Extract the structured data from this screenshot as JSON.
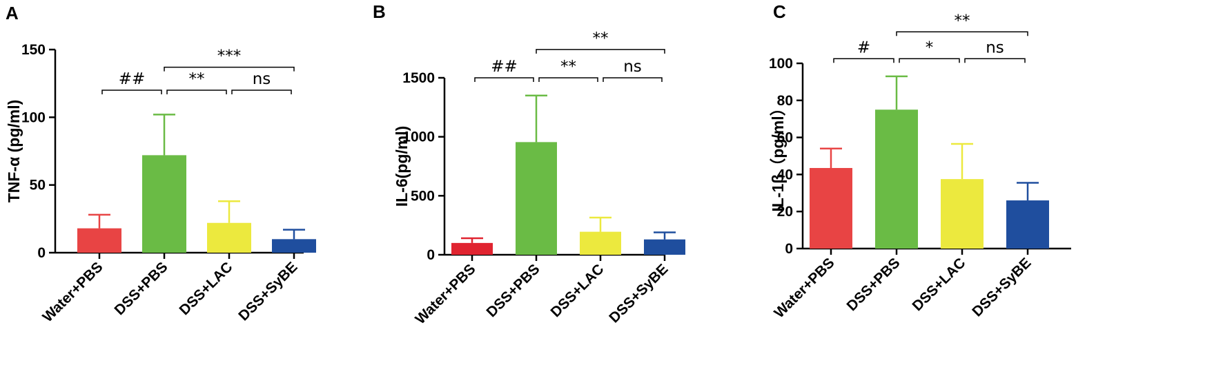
{
  "chart_data": [
    {
      "type": "bar",
      "panel": "A",
      "ylabel": "TNF-α (pg/ml)",
      "categories": [
        "Water+PBS",
        "DSS+PBS",
        "DSS+LAC",
        "DSS+SyBE"
      ],
      "values": [
        18,
        72,
        22,
        10
      ],
      "errors": [
        10,
        30,
        16,
        7
      ],
      "colors": [
        "#e84444",
        "#6abb45",
        "#ece93e",
        "#1f4e9e"
      ],
      "ylim": [
        0,
        150
      ],
      "yticks": [
        0,
        50,
        100,
        150
      ],
      "significance": [
        {
          "from": 0,
          "to": 1,
          "label": "##",
          "y": 120
        },
        {
          "from": 1,
          "to": 2,
          "label": "**",
          "y": 120
        },
        {
          "from": 2,
          "to": 3,
          "label": "ns",
          "y": 120
        },
        {
          "from": 1,
          "to": 3,
          "label": "***",
          "y": 137
        }
      ]
    },
    {
      "type": "bar",
      "panel": "B",
      "ylabel": "IL-6(pg/ml)",
      "categories": [
        "Water+PBS",
        "DSS+PBS",
        "DSS+LAC",
        "DSS+SyBE"
      ],
      "values": [
        100,
        955,
        195,
        130
      ],
      "errors": [
        40,
        395,
        120,
        60
      ],
      "colors": [
        "#e02430",
        "#6abb45",
        "#ece93e",
        "#1f4e9e"
      ],
      "ylim": [
        0,
        1500
      ],
      "yticks": [
        0,
        500,
        1000,
        1500
      ],
      "significance": [
        {
          "from": 0,
          "to": 1,
          "label": "##",
          "y": 1500
        },
        {
          "from": 1,
          "to": 2,
          "label": "**",
          "y": 1500
        },
        {
          "from": 2,
          "to": 3,
          "label": "ns",
          "y": 1500
        },
        {
          "from": 1,
          "to": 3,
          "label": "**",
          "y": 1740
        }
      ]
    },
    {
      "type": "bar",
      "panel": "C",
      "ylabel": "IL-1β（pg/ml）",
      "categories": [
        "Water+PBS",
        "DSS+PBS",
        "DSS+LAC",
        "DSS+SyBE"
      ],
      "values": [
        43.5,
        75,
        37.5,
        26
      ],
      "errors": [
        10.5,
        18,
        19,
        9.5
      ],
      "colors": [
        "#e84444",
        "#6abb45",
        "#ece93e",
        "#1f4e9e"
      ],
      "ylim": [
        0,
        100
      ],
      "yticks": [
        0,
        20,
        40,
        60,
        80,
        100
      ],
      "significance": [
        {
          "from": 0,
          "to": 1,
          "label": "#",
          "y": 102.5
        },
        {
          "from": 1,
          "to": 2,
          "label": "*",
          "y": 102.5
        },
        {
          "from": 2,
          "to": 3,
          "label": "ns",
          "y": 102.5
        },
        {
          "from": 1,
          "to": 3,
          "label": "**",
          "y": 117
        }
      ]
    }
  ]
}
